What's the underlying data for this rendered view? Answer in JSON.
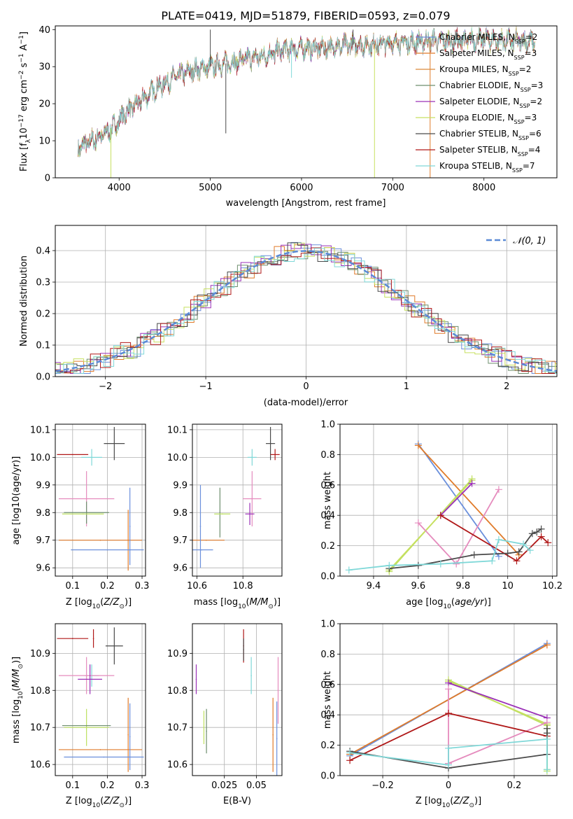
{
  "figure": {
    "title": "PLATE=0419, MJD=51879, FIBERID=0593, z=0.079"
  },
  "colors": {
    "chabrier_miles": "#6a8fdc",
    "salpeter_miles": "#e07b2a",
    "kroupa_miles": "#d98a3a",
    "chabrier_elodie": "#6e8f6e",
    "salpeter_elodie": "#9b30b8",
    "kroupa_elodie": "#c7e060",
    "chabrier_stelib": "#4a4a4a",
    "salpeter_stelib": "#b01818",
    "kroupa_stelib": "#7fd8d8",
    "pink": "#e58bbd",
    "yellowgreen": "#bde060",
    "normal_curve": "#5b8ad6"
  },
  "chart_data": [
    {
      "id": "spectrum",
      "type": "line",
      "xlabel": "wavelength [Angstrom, rest frame]",
      "ylabel": "Flux [f",
      "ylabel_parts": [
        "Flux [f",
        "λ",
        "10",
        "−17",
        " erg cm",
        "−2",
        " s",
        "−1",
        " A",
        "−1",
        "]"
      ],
      "xlim": [
        3300,
        8800
      ],
      "ylim": [
        0,
        41
      ],
      "xticks": [
        4000,
        5000,
        6000,
        7000,
        8000
      ],
      "yticks": [
        0,
        10,
        20,
        30,
        40
      ],
      "grid": false,
      "legend_placement": "upper-right",
      "continuum": {
        "x": [
          3550,
          3700,
          3850,
          3950,
          4050,
          4200,
          4400,
          4600,
          4800,
          5000,
          5200,
          5400,
          5600,
          5800,
          6000,
          6200,
          6400,
          6600,
          6800,
          7000,
          7200,
          7400,
          7600,
          7800,
          8000,
          8200,
          8400,
          8600
        ],
        "y": [
          8,
          10,
          12,
          14,
          17,
          20,
          24,
          27,
          29,
          30,
          31,
          32,
          33,
          34.5,
          35,
          35,
          35.5,
          36,
          36,
          36.5,
          36.5,
          37,
          37,
          37,
          37.5,
          37,
          37,
          36.5
        ]
      },
      "features": [
        {
          "x": 5000,
          "y": 40
        },
        {
          "x": 5170,
          "y": 12
        },
        {
          "x": 5890,
          "y": 27
        },
        {
          "x": 6565,
          "y": 40
        },
        {
          "x": 3910,
          "y": 0
        },
        {
          "x": 6800,
          "y": 0
        },
        {
          "x": 7410,
          "y": 0
        }
      ],
      "series": [
        {
          "name": "Chabrier MILES, N",
          "sub": "SSP",
          "count": "=2",
          "color_key": "chabrier_miles"
        },
        {
          "name": "Salpeter MILES, N",
          "sub": "SSP",
          "count": "=3",
          "color_key": "salpeter_miles"
        },
        {
          "name": "Kroupa MILES, N",
          "sub": "SSP",
          "count": "=2",
          "color_key": "kroupa_miles"
        },
        {
          "name": "Chabrier ELODIE, N",
          "sub": "SSP",
          "count": "=3",
          "color_key": "chabrier_elodie"
        },
        {
          "name": "Salpeter ELODIE, N",
          "sub": "SSP",
          "count": "=2",
          "color_key": "salpeter_elodie"
        },
        {
          "name": "Kroupa ELODIE, N",
          "sub": "SSP",
          "count": "=3",
          "color_key": "kroupa_elodie"
        },
        {
          "name": "Chabrier STELIB, N",
          "sub": "SSP",
          "count": "=6",
          "color_key": "chabrier_stelib"
        },
        {
          "name": "Salpeter STELIB, N",
          "sub": "SSP",
          "count": "=4",
          "color_key": "salpeter_stelib"
        },
        {
          "name": "Kroupa STELIB, N",
          "sub": "SSP",
          "count": "=7",
          "color_key": "kroupa_stelib"
        }
      ]
    },
    {
      "id": "residuals",
      "type": "line",
      "xlabel": "(data-model)/error",
      "ylabel": "Normed distribution",
      "xlim": [
        -2.5,
        2.5
      ],
      "ylim": [
        0,
        0.48
      ],
      "xticks": [
        -2,
        -1,
        0,
        1,
        2
      ],
      "yticks": [
        0.0,
        0.1,
        0.2,
        0.3,
        0.4
      ],
      "grid": true,
      "legend_placement": "upper-right",
      "legend_label": "𝒩(0, 1)",
      "bin_width": 0.1,
      "histogram_colors": [
        "chabrier_miles",
        "salpeter_miles",
        "chabrier_elodie",
        "salpeter_elodie",
        "kroupa_elodie",
        "chabrier_stelib",
        "salpeter_stelib",
        "kroupa_stelib"
      ]
    },
    {
      "id": "age_vs_z",
      "type": "scatter",
      "xlabel": "Z [log",
      "xlabel_parts": [
        "Z [log",
        "10",
        "(",
        "Z/Z",
        "⊙",
        ")]"
      ],
      "ylabel_parts": [
        "age  [log",
        "10",
        "(",
        "age/yr",
        ")]"
      ],
      "xlim": [
        0.05,
        0.31
      ],
      "ylim": [
        9.57,
        10.12
      ],
      "xticks": [
        0.1,
        0.2,
        0.3
      ],
      "yticks": [
        9.6,
        9.7,
        9.8,
        9.9,
        10.0,
        10.1
      ],
      "grid": true,
      "points": [
        {
          "x": 0.22,
          "y": 10.05,
          "xerr": 0.03,
          "yerr": 0.06,
          "color_key": "chabrier_stelib"
        },
        {
          "x": 0.1,
          "y": 10.01,
          "xerr": 0.045,
          "yerr": 0.0,
          "color_key": "salpeter_stelib"
        },
        {
          "x": 0.155,
          "y": 10.0,
          "xerr": 0.03,
          "yerr": 0.03,
          "color_key": "kroupa_stelib"
        },
        {
          "x": 0.14,
          "y": 9.85,
          "xerr": 0.08,
          "yerr": 0.1,
          "color_key": "pink"
        },
        {
          "x": 0.14,
          "y": 9.8,
          "xerr": 0.065,
          "yerr": 0.04,
          "color_key": "chabrier_elodie"
        },
        {
          "x": 0.13,
          "y": 9.795,
          "xerr": 0.06,
          "yerr": 0.0,
          "color_key": "yellowgreen"
        },
        {
          "x": 0.18,
          "y": 9.7,
          "xerr": 0.12,
          "yerr": 0.0,
          "color_key": "salpeter_miles"
        },
        {
          "x": 0.26,
          "y": 9.7,
          "xerr": 0.0,
          "yerr": 0.11,
          "color_key": "salpeter_miles"
        },
        {
          "x": 0.2,
          "y": 9.665,
          "xerr": 0.105,
          "yerr": 0.0,
          "color_key": "chabrier_miles"
        },
        {
          "x": 0.265,
          "y": 9.75,
          "xerr": 0.0,
          "yerr": 0.14,
          "color_key": "chabrier_miles"
        }
      ]
    },
    {
      "id": "age_vs_mass",
      "type": "scatter",
      "xlabel_parts": [
        "mass [log",
        "10",
        "(",
        "M/M",
        "⊙",
        ")]"
      ],
      "xlim": [
        10.58,
        10.97
      ],
      "ylim": [
        9.57,
        10.12
      ],
      "xticks": [
        10.6,
        10.8
      ],
      "yticks": [
        9.6,
        9.7,
        9.8,
        9.9,
        10.0,
        10.1
      ],
      "grid": true,
      "points": [
        {
          "x": 10.92,
          "y": 10.05,
          "xerr": 0.02,
          "yerr": 0.06,
          "color_key": "chabrier_stelib"
        },
        {
          "x": 10.94,
          "y": 10.01,
          "xerr": 0.02,
          "yerr": 0.02,
          "color_key": "salpeter_stelib"
        },
        {
          "x": 10.84,
          "y": 10.0,
          "xerr": 0.02,
          "yerr": 0.03,
          "color_key": "kroupa_stelib"
        },
        {
          "x": 10.84,
          "y": 9.85,
          "xerr": 0.04,
          "yerr": 0.1,
          "color_key": "pink"
        },
        {
          "x": 10.83,
          "y": 9.795,
          "xerr": 0.02,
          "yerr": 0.04,
          "color_key": "salpeter_elodie"
        },
        {
          "x": 10.7,
          "y": 9.8,
          "xerr": 0.0,
          "yerr": 0.09,
          "color_key": "chabrier_elodie"
        },
        {
          "x": 10.71,
          "y": 9.795,
          "xerr": 0.035,
          "yerr": 0.0,
          "color_key": "yellowgreen"
        },
        {
          "x": 10.64,
          "y": 9.7,
          "xerr": 0.08,
          "yerr": 0.0,
          "color_key": "salpeter_miles"
        },
        {
          "x": 10.62,
          "y": 9.665,
          "xerr": 0.05,
          "yerr": 0.0,
          "color_key": "chabrier_miles"
        },
        {
          "x": 10.615,
          "y": 9.75,
          "xerr": 0.0,
          "yerr": 0.15,
          "color_key": "chabrier_miles"
        }
      ]
    },
    {
      "id": "weight_vs_age",
      "type": "line",
      "xlabel_parts": [
        "age  [log",
        "10",
        "(",
        "age/yr",
        ")]"
      ],
      "ylabel": "mass weight",
      "xlim": [
        9.25,
        10.22
      ],
      "ylim": [
        0,
        1.0
      ],
      "xticks": [
        9.4,
        9.6,
        9.8,
        10.0,
        10.2
      ],
      "yticks": [
        0.0,
        0.2,
        0.4,
        0.6,
        0.8,
        1.0
      ],
      "grid": true,
      "series": [
        {
          "color_key": "chabrier_miles",
          "x": [
            9.6,
            9.96
          ],
          "y": [
            0.87,
            0.13
          ]
        },
        {
          "color_key": "salpeter_miles",
          "x": [
            9.6,
            10.05
          ],
          "y": [
            0.86,
            0.14
          ]
        },
        {
          "color_key": "yellowgreen",
          "x": [
            9.47,
            9.84
          ],
          "y": [
            0.03,
            0.64
          ]
        },
        {
          "color_key": "kroupa_elodie",
          "x": [
            9.47,
            9.84
          ],
          "y": [
            0.04,
            0.63
          ]
        },
        {
          "color_key": "pink",
          "x": [
            9.6,
            9.77,
            9.96
          ],
          "y": [
            0.35,
            0.08,
            0.57
          ]
        },
        {
          "color_key": "salpeter_elodie",
          "x": [
            9.7,
            9.84
          ],
          "y": [
            0.4,
            0.61
          ]
        },
        {
          "color_key": "salpeter_stelib",
          "x": [
            9.7,
            10.04,
            10.15,
            10.18
          ],
          "y": [
            0.4,
            0.1,
            0.26,
            0.22
          ]
        },
        {
          "color_key": "chabrier_stelib",
          "x": [
            9.47,
            9.6,
            9.85,
            10.0,
            10.05,
            10.11,
            10.13,
            10.15
          ],
          "y": [
            0.05,
            0.07,
            0.14,
            0.15,
            0.16,
            0.28,
            0.29,
            0.31
          ]
        },
        {
          "color_key": "kroupa_stelib",
          "x": [
            9.29,
            9.47,
            9.7,
            9.93,
            9.96,
            10.07,
            10.1
          ],
          "y": [
            0.04,
            0.07,
            0.08,
            0.1,
            0.24,
            0.21,
            0.17
          ]
        }
      ]
    },
    {
      "id": "mass_vs_z",
      "type": "scatter",
      "xlabel_parts": [
        "Z [log",
        "10",
        "(",
        "Z/Z",
        "⊙",
        ")]"
      ],
      "ylabel_parts": [
        "mass [log",
        "10",
        "(",
        "M/M",
        "⊙",
        ")]"
      ],
      "xlim": [
        0.05,
        0.31
      ],
      "ylim": [
        10.57,
        10.98
      ],
      "xticks": [
        0.1,
        0.2,
        0.3
      ],
      "yticks": [
        10.6,
        10.7,
        10.8,
        10.9
      ],
      "grid": true,
      "points": [
        {
          "x": 0.1,
          "y": 10.94,
          "xerr": 0.045,
          "yerr": 0.0,
          "color_key": "salpeter_stelib"
        },
        {
          "x": 0.16,
          "y": 10.94,
          "xerr": 0.0,
          "yerr": 0.025,
          "color_key": "salpeter_stelib"
        },
        {
          "x": 0.22,
          "y": 10.92,
          "xerr": 0.025,
          "yerr": 0.05,
          "color_key": "chabrier_stelib"
        },
        {
          "x": 0.155,
          "y": 10.84,
          "xerr": 0.02,
          "yerr": 0.03,
          "color_key": "kroupa_stelib"
        },
        {
          "x": 0.14,
          "y": 10.84,
          "xerr": 0.08,
          "yerr": 0.05,
          "color_key": "pink"
        },
        {
          "x": 0.15,
          "y": 10.83,
          "xerr": 0.035,
          "yerr": 0.04,
          "color_key": "salpeter_elodie"
        },
        {
          "x": 0.14,
          "y": 10.7,
          "xerr": 0.065,
          "yerr": 0.05,
          "color_key": "yellowgreen"
        },
        {
          "x": 0.14,
          "y": 10.705,
          "xerr": 0.07,
          "yerr": 0.0,
          "color_key": "chabrier_elodie"
        },
        {
          "x": 0.18,
          "y": 10.64,
          "xerr": 0.12,
          "yerr": 0.0,
          "color_key": "salpeter_miles"
        },
        {
          "x": 0.26,
          "y": 10.68,
          "xerr": 0.0,
          "yerr": 0.1,
          "color_key": "salpeter_miles"
        },
        {
          "x": 0.19,
          "y": 10.62,
          "xerr": 0.115,
          "yerr": 0.0,
          "color_key": "chabrier_miles"
        },
        {
          "x": 0.265,
          "y": 10.675,
          "xerr": 0.0,
          "yerr": 0.09,
          "color_key": "chabrier_miles"
        }
      ]
    },
    {
      "id": "mass_vs_ebv",
      "type": "scatter",
      "xlabel": "E(B-V)",
      "xlim": [
        0.0,
        0.07
      ],
      "ylim": [
        10.57,
        10.98
      ],
      "xticks": [
        0.025,
        0.05
      ],
      "yticks": [
        10.6,
        10.7,
        10.8,
        10.9
      ],
      "grid": true,
      "points": [
        {
          "x": 0.04,
          "y": 10.92,
          "xerr": 0.0,
          "yerr": 0.045,
          "color_key": "salpeter_stelib"
        },
        {
          "x": 0.04,
          "y": 10.91,
          "xerr": 0.0,
          "yerr": 0.03,
          "color_key": "chabrier_stelib"
        },
        {
          "x": 0.046,
          "y": 10.84,
          "xerr": 0.0,
          "yerr": 0.05,
          "color_key": "kroupa_stelib"
        },
        {
          "x": 0.067,
          "y": 10.8,
          "xerr": 0.0,
          "yerr": 0.09,
          "color_key": "pink"
        },
        {
          "x": 0.003,
          "y": 10.83,
          "xerr": 0.0,
          "yerr": 0.04,
          "color_key": "salpeter_elodie"
        },
        {
          "x": 0.009,
          "y": 10.7,
          "xerr": 0.0,
          "yerr": 0.045,
          "color_key": "yellowgreen"
        },
        {
          "x": 0.011,
          "y": 10.69,
          "xerr": 0.0,
          "yerr": 0.06,
          "color_key": "chabrier_elodie"
        },
        {
          "x": 0.063,
          "y": 10.68,
          "xerr": 0.0,
          "yerr": 0.1,
          "color_key": "salpeter_miles"
        },
        {
          "x": 0.066,
          "y": 10.67,
          "xerr": 0.0,
          "yerr": 0.1,
          "color_key": "chabrier_miles"
        }
      ]
    },
    {
      "id": "weight_vs_z",
      "type": "line",
      "xlabel_parts": [
        "Z [log",
        "10",
        "(",
        "Z/Z",
        "⊙",
        ")]"
      ],
      "ylabel": "mass weight",
      "xlim": [
        -0.33,
        0.33
      ],
      "ylim": [
        0,
        1.0
      ],
      "xticks": [
        -0.2,
        0.0,
        0.2
      ],
      "yticks": [
        0.0,
        0.2,
        0.4,
        0.6,
        0.8,
        1.0
      ],
      "grid": true,
      "series": [
        {
          "color_key": "chabrier_miles",
          "x": [
            -0.3,
            0.3
          ],
          "y": [
            0.13,
            0.87
          ]
        },
        {
          "color_key": "salpeter_miles",
          "x": [
            -0.3,
            0.3
          ],
          "y": [
            0.14,
            0.86
          ]
        },
        {
          "color_key": "yellowgreen",
          "x": [
            0.0,
            0.3,
            0.3
          ],
          "y": [
            0.63,
            0.33,
            0.03
          ]
        },
        {
          "color_key": "kroupa_elodie",
          "x": [
            0.0,
            0.3,
            0.3
          ],
          "y": [
            0.62,
            0.34,
            0.04
          ]
        },
        {
          "color_key": "salpeter_elodie",
          "x": [
            0.0,
            0.3
          ],
          "y": [
            0.61,
            0.38
          ]
        },
        {
          "color_key": "pink",
          "x": [
            0.0,
            0.0,
            0.3
          ],
          "y": [
            0.57,
            0.08,
            0.35
          ]
        },
        {
          "color_key": "salpeter_stelib",
          "x": [
            -0.3,
            0.0,
            0.3
          ],
          "y": [
            0.1,
            0.41,
            0.26
          ]
        },
        {
          "color_key": "chabrier_stelib",
          "x": [
            -0.3,
            0.0,
            0.3,
            0.3,
            0.3
          ],
          "y": [
            0.16,
            0.05,
            0.14,
            0.28,
            0.31
          ]
        },
        {
          "color_key": "kroupa_stelib",
          "x": [
            -0.3,
            0.0,
            0.0,
            0.3,
            0.3
          ],
          "y": [
            0.15,
            0.07,
            0.18,
            0.24,
            0.04
          ]
        }
      ]
    }
  ]
}
